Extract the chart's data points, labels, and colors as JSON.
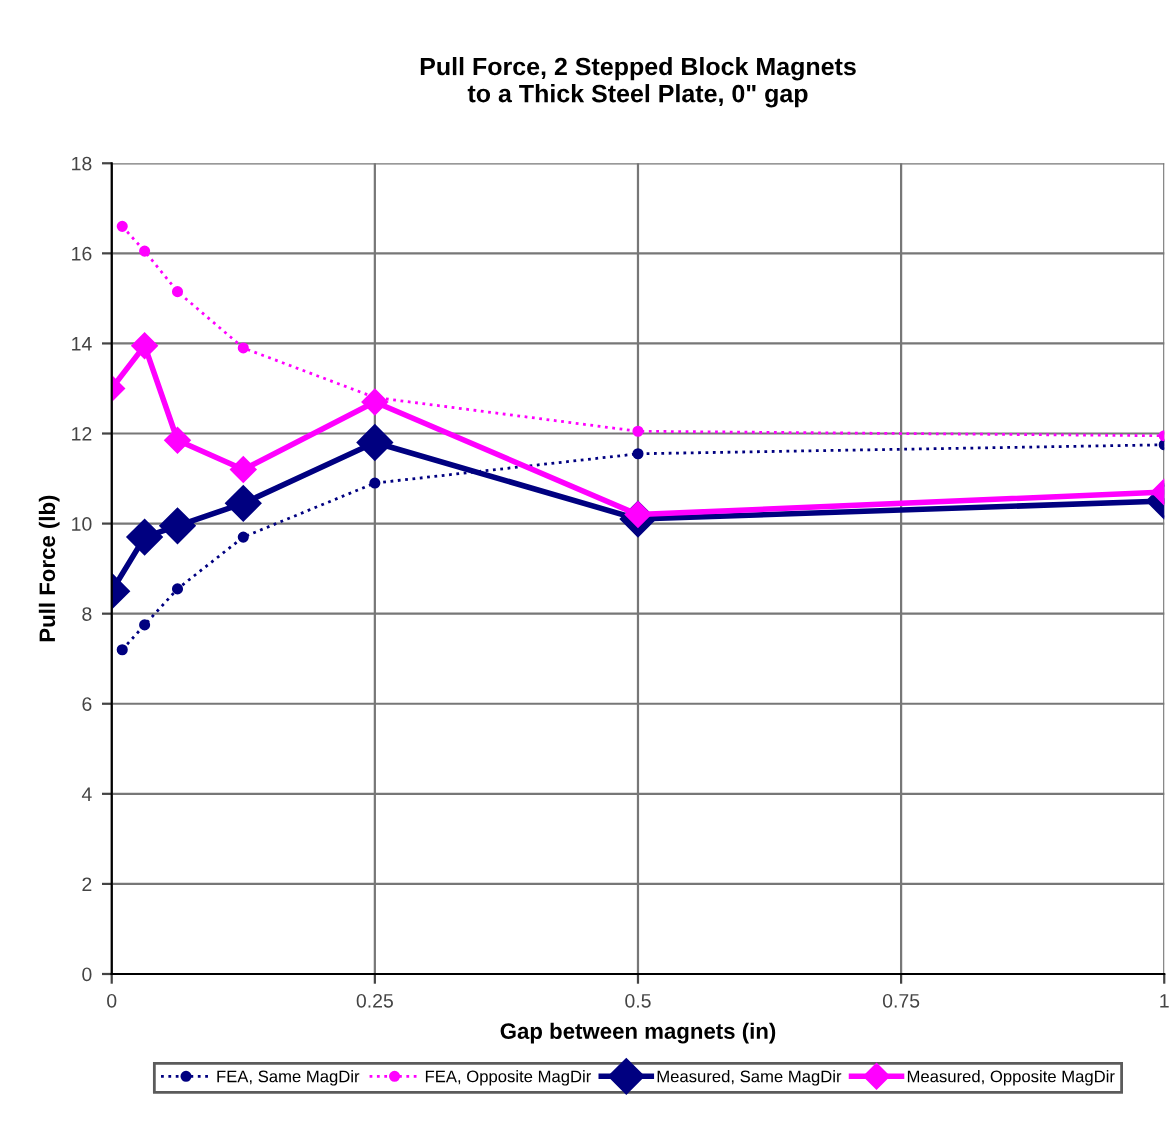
{
  "chart_data": {
    "type": "line",
    "title": "Pull Force, 2 Stepped Block Magnets\nto a Thick Steel Plate, 0\" gap",
    "xlabel": "Gap between magnets (in)",
    "ylabel": "Pull Force (lb)",
    "xlim": [
      0,
      1
    ],
    "xticks": [
      0,
      0.25,
      0.5,
      0.75,
      1
    ],
    "ylim": [
      0,
      18
    ],
    "yticks": [
      0,
      2,
      4,
      6,
      8,
      10,
      12,
      14,
      16,
      18
    ],
    "grid": true,
    "legend": "bottom",
    "series": [
      {
        "name": "FEA, Same MagDir",
        "color": "#000080",
        "line_style": "dotted",
        "marker": "circle",
        "x": [
          0.01,
          0.03125,
          0.0625,
          0.125,
          0.25,
          0.5,
          1
        ],
        "values": [
          7.2,
          7.75,
          8.55,
          9.7,
          10.9,
          11.55,
          11.75
        ]
      },
      {
        "name": "FEA, Opposite MagDir",
        "color": "#ff00ff",
        "line_style": "dotted",
        "marker": "circle",
        "x": [
          0.01,
          0.03125,
          0.0625,
          0.125,
          0.25,
          0.5,
          1
        ],
        "values": [
          16.6,
          16.05,
          15.15,
          13.9,
          12.8,
          12.05,
          11.95
        ]
      },
      {
        "name": "Measured, Same MagDir",
        "color": "#000080",
        "line_style": "solid",
        "marker": "diamond",
        "x": [
          0,
          0.03125,
          0.0625,
          0.125,
          0.25,
          0.5,
          1
        ],
        "values": [
          8.5,
          9.7,
          9.95,
          10.45,
          11.8,
          10.1,
          10.5
        ]
      },
      {
        "name": "Measured, Opposite MagDir",
        "color": "#ff00ff",
        "line_style": "solid",
        "marker": "diamond",
        "x": [
          0,
          0.03125,
          0.0625,
          0.125,
          0.25,
          0.5,
          1
        ],
        "values": [
          13.0,
          13.95,
          11.85,
          11.2,
          12.7,
          10.2,
          10.7
        ]
      }
    ]
  }
}
